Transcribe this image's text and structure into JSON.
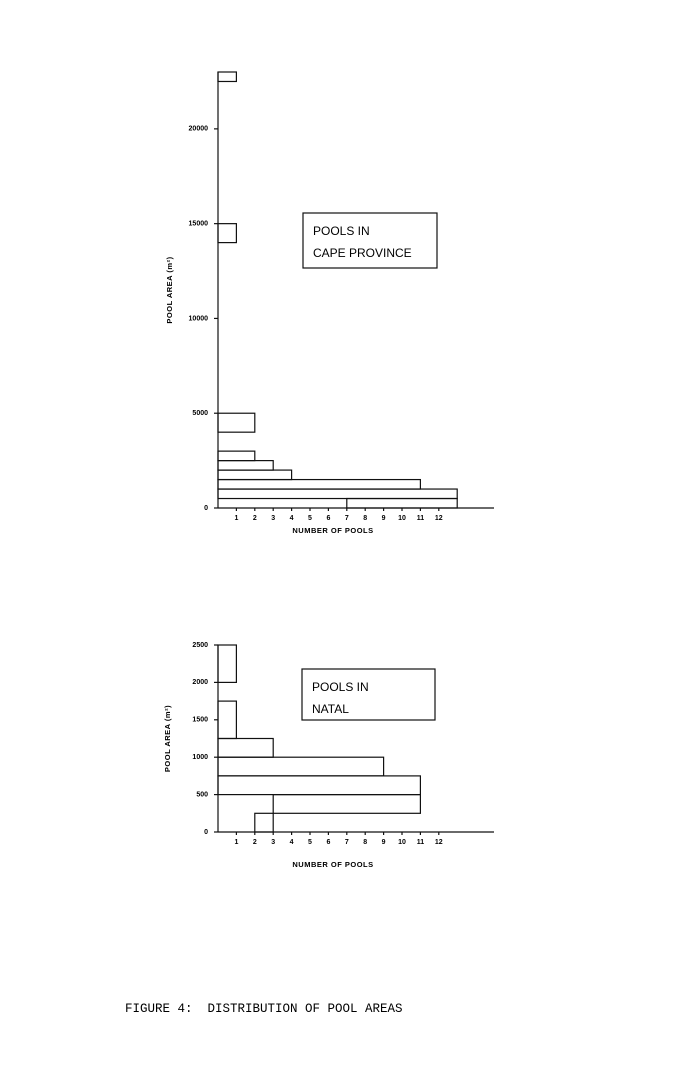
{
  "chart_data": [
    {
      "type": "histogram",
      "orientation": "horizontal",
      "annotation": [
        "POOLS IN",
        "CAPE PROVINCE"
      ],
      "xlabel": "NUMBER OF POOLS",
      "ylabel": "POOL AREA (m²)",
      "bars": [
        {
          "area": [
            22500,
            23000
          ],
          "pools": [
            0,
            1
          ]
        },
        {
          "area": [
            14000,
            15000
          ],
          "pools": [
            0,
            1
          ]
        },
        {
          "area": [
            4000,
            5000
          ],
          "pools": [
            0,
            2
          ]
        },
        {
          "area": [
            2500,
            3000
          ],
          "pools": [
            0,
            2
          ]
        },
        {
          "area": [
            2000,
            2500
          ],
          "pools": [
            0,
            3
          ]
        },
        {
          "area": [
            1500,
            2000
          ],
          "pools": [
            0,
            4
          ]
        },
        {
          "area": [
            1000,
            1500
          ],
          "pools": [
            0,
            11
          ]
        },
        {
          "area": [
            500,
            1000
          ],
          "pools": [
            0,
            13
          ]
        },
        {
          "area": [
            0,
            500
          ],
          "pools": [
            7,
            13
          ]
        }
      ],
      "xlim": [
        0,
        15
      ],
      "xticks": [
        1,
        2,
        3,
        4,
        5,
        6,
        7,
        8,
        9,
        10,
        11,
        12
      ],
      "ylim": [
        0,
        23000
      ],
      "yticks": [
        0,
        5000,
        10000,
        15000,
        20000
      ]
    },
    {
      "type": "histogram",
      "orientation": "horizontal",
      "annotation": [
        "POOLS IN",
        "NATAL"
      ],
      "xlabel": "NUMBER OF POOLS",
      "ylabel": "POOL AREA (m²)",
      "bars": [
        {
          "area": [
            2000,
            2500
          ],
          "pools": [
            0,
            1
          ]
        },
        {
          "area": [
            1250,
            1750
          ],
          "pools": [
            0,
            1
          ]
        },
        {
          "area": [
            1000,
            1250
          ],
          "pools": [
            0,
            3
          ]
        },
        {
          "area": [
            750,
            1000
          ],
          "pools": [
            0,
            9
          ]
        },
        {
          "area": [
            500,
            750
          ],
          "pools": [
            0,
            11
          ]
        },
        {
          "area": [
            250,
            500
          ],
          "pools": [
            3,
            11
          ]
        },
        {
          "area": [
            0,
            250
          ],
          "pools": [
            2,
            3
          ]
        }
      ],
      "xlim": [
        0,
        15
      ],
      "xticks": [
        1,
        2,
        3,
        4,
        5,
        6,
        7,
        8,
        9,
        10,
        11,
        12
      ],
      "ylim": [
        0,
        2500
      ],
      "yticks": [
        0,
        500,
        1000,
        1500,
        2000,
        2500
      ]
    }
  ],
  "caption": "FIGURE 4:  DISTRIBUTION OF POOL AREAS"
}
